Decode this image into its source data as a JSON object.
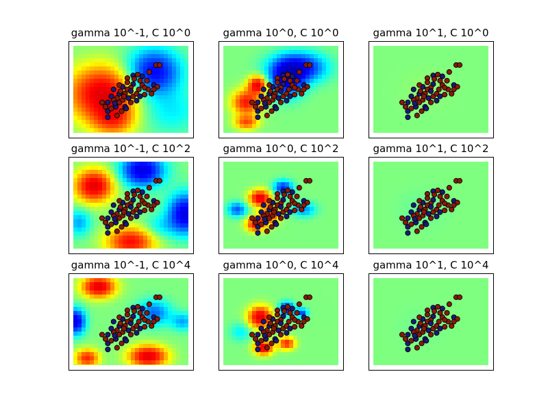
{
  "chart_data": {
    "type": "heatmap",
    "layout": "3x3 grid",
    "colormap": "jet",
    "axes": "ticks hidden",
    "point_classes": [
      {
        "fill": "#1a1a7a"
      },
      {
        "fill": "#8b1a0a"
      }
    ],
    "panels": [
      {
        "title": "gamma 10^-1, C 10^0",
        "gamma": 0.1,
        "C": 1,
        "blobs": [
          [
            0.25,
            0.55,
            0.28,
            0.3,
            1.0
          ],
          [
            0.35,
            0.85,
            0.18,
            0.18,
            0.55
          ],
          [
            0.7,
            0.3,
            0.22,
            0.25,
            -0.9
          ],
          [
            0.85,
            0.75,
            0.25,
            0.25,
            -0.25
          ]
        ]
      },
      {
        "title": "gamma 10^0, C 10^0",
        "gamma": 1,
        "C": 1,
        "blobs": [
          [
            0.2,
            0.65,
            0.12,
            0.14,
            0.8
          ],
          [
            0.3,
            0.45,
            0.08,
            0.1,
            0.95
          ],
          [
            0.2,
            0.88,
            0.1,
            0.08,
            0.6
          ],
          [
            0.55,
            0.4,
            0.14,
            0.18,
            -0.85
          ],
          [
            0.65,
            0.25,
            0.22,
            0.16,
            -0.95
          ]
        ]
      },
      {
        "title": "gamma 10^1, C 10^0",
        "gamma": 10,
        "C": 1,
        "blobs": [
          [
            0.45,
            0.5,
            0.22,
            0.22,
            0.03
          ]
        ]
      },
      {
        "title": "gamma 10^-1, C 10^2",
        "gamma": 0.1,
        "C": 100,
        "blobs": [
          [
            0.18,
            0.28,
            0.16,
            0.18,
            1.0
          ],
          [
            0.5,
            0.92,
            0.2,
            0.16,
            0.85
          ],
          [
            0.6,
            0.1,
            0.18,
            0.18,
            -1.0
          ],
          [
            0.97,
            0.6,
            0.14,
            0.22,
            -1.0
          ],
          [
            0.05,
            0.7,
            0.1,
            0.15,
            -0.4
          ],
          [
            0.75,
            0.75,
            0.14,
            0.14,
            -0.25
          ]
        ]
      },
      {
        "title": "gamma 10^0, C 10^2",
        "gamma": 1,
        "C": 100,
        "blobs": [
          [
            0.32,
            0.42,
            0.09,
            0.09,
            1.0
          ],
          [
            0.28,
            0.72,
            0.08,
            0.08,
            0.85
          ],
          [
            0.4,
            0.62,
            0.08,
            0.09,
            0.75
          ],
          [
            0.12,
            0.55,
            0.08,
            0.08,
            -0.6
          ],
          [
            0.52,
            0.3,
            0.08,
            0.08,
            -0.75
          ],
          [
            0.7,
            0.55,
            0.1,
            0.08,
            -0.45
          ]
        ]
      },
      {
        "title": "gamma 10^1, C 10^2",
        "gamma": 10,
        "C": 100,
        "blobs": [
          [
            0.42,
            0.55,
            0.2,
            0.2,
            -0.05
          ]
        ]
      },
      {
        "title": "gamma 10^-1, C 10^4",
        "gamma": 0.1,
        "C": 10000,
        "blobs": [
          [
            0.22,
            0.1,
            0.14,
            0.12,
            1.0
          ],
          [
            0.65,
            0.9,
            0.16,
            0.12,
            1.0
          ],
          [
            0.12,
            0.92,
            0.1,
            0.1,
            0.75
          ],
          [
            0.02,
            0.5,
            0.08,
            0.14,
            -1.0
          ],
          [
            0.7,
            0.4,
            0.14,
            0.14,
            -0.55
          ],
          [
            0.95,
            0.5,
            0.1,
            0.1,
            -0.4
          ]
        ]
      },
      {
        "title": "gamma 10^0, C 10^4",
        "gamma": 1,
        "C": 10000,
        "blobs": [
          [
            0.32,
            0.45,
            0.1,
            0.12,
            1.0
          ],
          [
            0.35,
            0.8,
            0.08,
            0.08,
            0.95
          ],
          [
            0.55,
            0.75,
            0.07,
            0.07,
            0.75
          ],
          [
            0.15,
            0.62,
            0.09,
            0.1,
            -0.25
          ],
          [
            0.55,
            0.35,
            0.06,
            0.07,
            -0.85
          ],
          [
            0.68,
            0.4,
            0.05,
            0.05,
            -0.7
          ]
        ]
      },
      {
        "title": "gamma 10^1, C 10^4",
        "gamma": 10,
        "C": 10000,
        "blobs": [
          [
            0.42,
            0.55,
            0.2,
            0.2,
            -0.03
          ]
        ]
      }
    ],
    "points": [
      [
        0.47,
        0.37,
        1
      ],
      [
        0.52,
        0.34,
        0
      ],
      [
        0.56,
        0.33,
        1
      ],
      [
        0.6,
        0.35,
        0
      ],
      [
        0.66,
        0.3,
        1
      ],
      [
        0.72,
        0.22,
        1
      ],
      [
        0.75,
        0.22,
        1
      ],
      [
        0.64,
        0.4,
        1
      ],
      [
        0.7,
        0.45,
        0
      ],
      [
        0.73,
        0.47,
        1
      ],
      [
        0.7,
        0.5,
        1
      ],
      [
        0.65,
        0.5,
        1
      ],
      [
        0.6,
        0.45,
        1
      ],
      [
        0.57,
        0.5,
        1
      ],
      [
        0.52,
        0.44,
        0
      ],
      [
        0.5,
        0.48,
        1
      ],
      [
        0.47,
        0.5,
        1
      ],
      [
        0.43,
        0.47,
        0
      ],
      [
        0.45,
        0.55,
        1
      ],
      [
        0.4,
        0.55,
        0
      ],
      [
        0.38,
        0.6,
        1
      ],
      [
        0.35,
        0.62,
        1
      ],
      [
        0.33,
        0.58,
        0
      ],
      [
        0.3,
        0.65,
        0
      ],
      [
        0.28,
        0.7,
        1
      ],
      [
        0.3,
        0.75,
        0
      ],
      [
        0.33,
        0.72,
        1
      ],
      [
        0.37,
        0.7,
        0
      ],
      [
        0.4,
        0.65,
        1
      ],
      [
        0.43,
        0.62,
        1
      ],
      [
        0.48,
        0.6,
        0
      ],
      [
        0.52,
        0.58,
        1
      ],
      [
        0.55,
        0.55,
        1
      ],
      [
        0.58,
        0.58,
        0
      ],
      [
        0.62,
        0.56,
        1
      ],
      [
        0.5,
        0.65,
        1
      ],
      [
        0.45,
        0.7,
        0
      ],
      [
        0.42,
        0.75,
        1
      ],
      [
        0.38,
        0.8,
        1
      ],
      [
        0.3,
        0.82,
        0
      ],
      [
        0.53,
        0.38,
        1
      ],
      [
        0.58,
        0.4,
        1
      ],
      [
        0.55,
        0.63,
        0
      ],
      [
        0.47,
        0.42,
        1
      ],
      [
        0.4,
        0.45,
        1
      ],
      [
        0.35,
        0.5,
        0
      ],
      [
        0.25,
        0.65,
        1
      ],
      [
        0.36,
        0.66,
        0
      ],
      [
        0.44,
        0.58,
        1
      ],
      [
        0.5,
        0.52,
        0
      ],
      [
        0.62,
        0.48,
        1
      ],
      [
        0.68,
        0.55,
        1
      ],
      [
        0.46,
        0.72,
        0
      ],
      [
        0.41,
        0.52,
        1
      ]
    ]
  }
}
